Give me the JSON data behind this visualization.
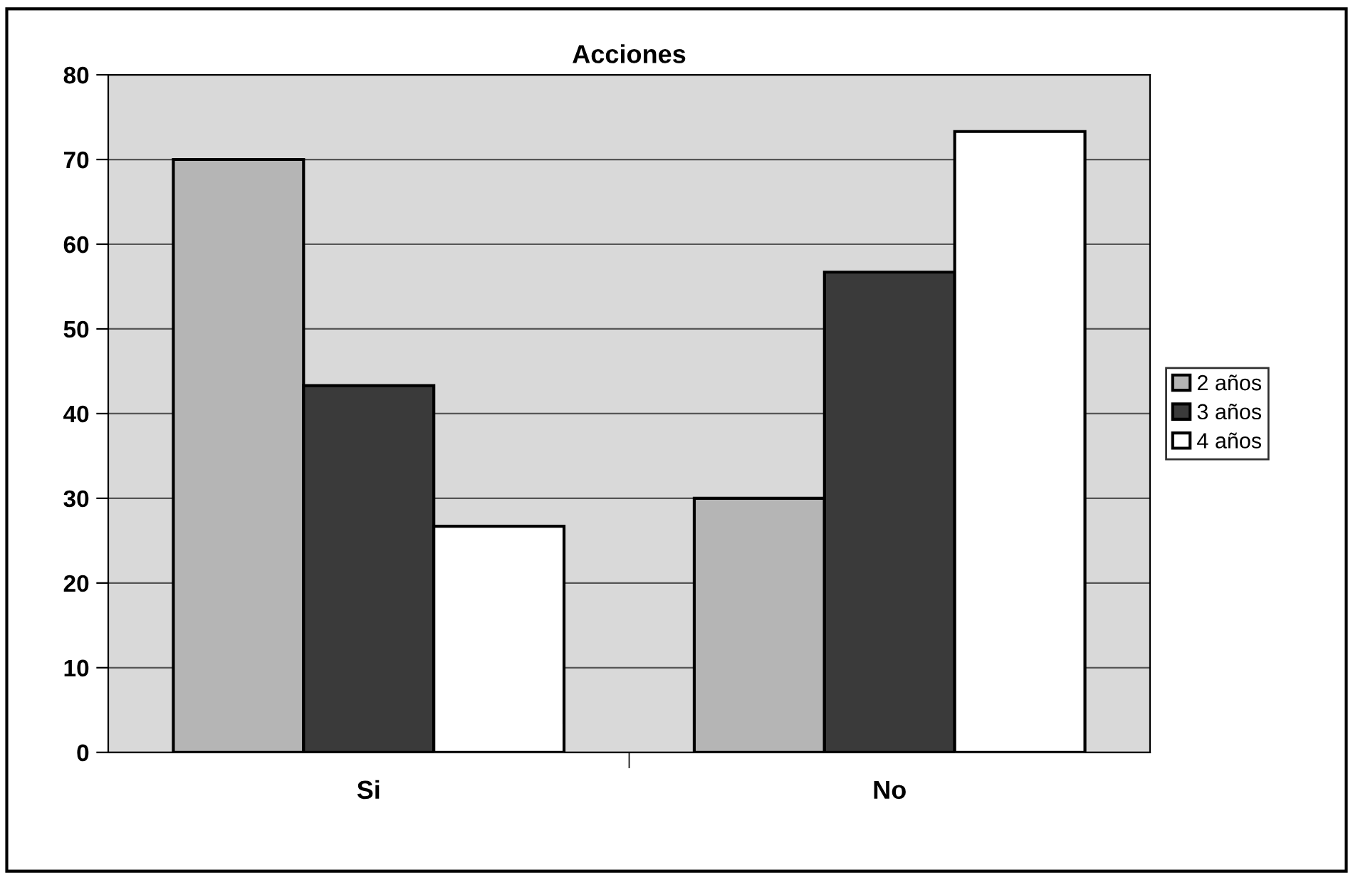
{
  "chart_data": {
    "type": "bar",
    "title": "Acciones",
    "categories": [
      "Si",
      "No"
    ],
    "series": [
      {
        "name": "2 años",
        "color": "#b5b5b5",
        "values": [
          70,
          30
        ]
      },
      {
        "name": "3 años",
        "color": "#3a3a3a",
        "values": [
          43.3,
          56.7
        ]
      },
      {
        "name": "4 años",
        "color": "#ffffff",
        "values": [
          26.7,
          73.3
        ]
      }
    ],
    "ylim": [
      0,
      80
    ],
    "yticks": [
      0,
      10,
      20,
      30,
      40,
      50,
      60,
      70,
      80
    ],
    "grid": "y",
    "legend": "right"
  }
}
